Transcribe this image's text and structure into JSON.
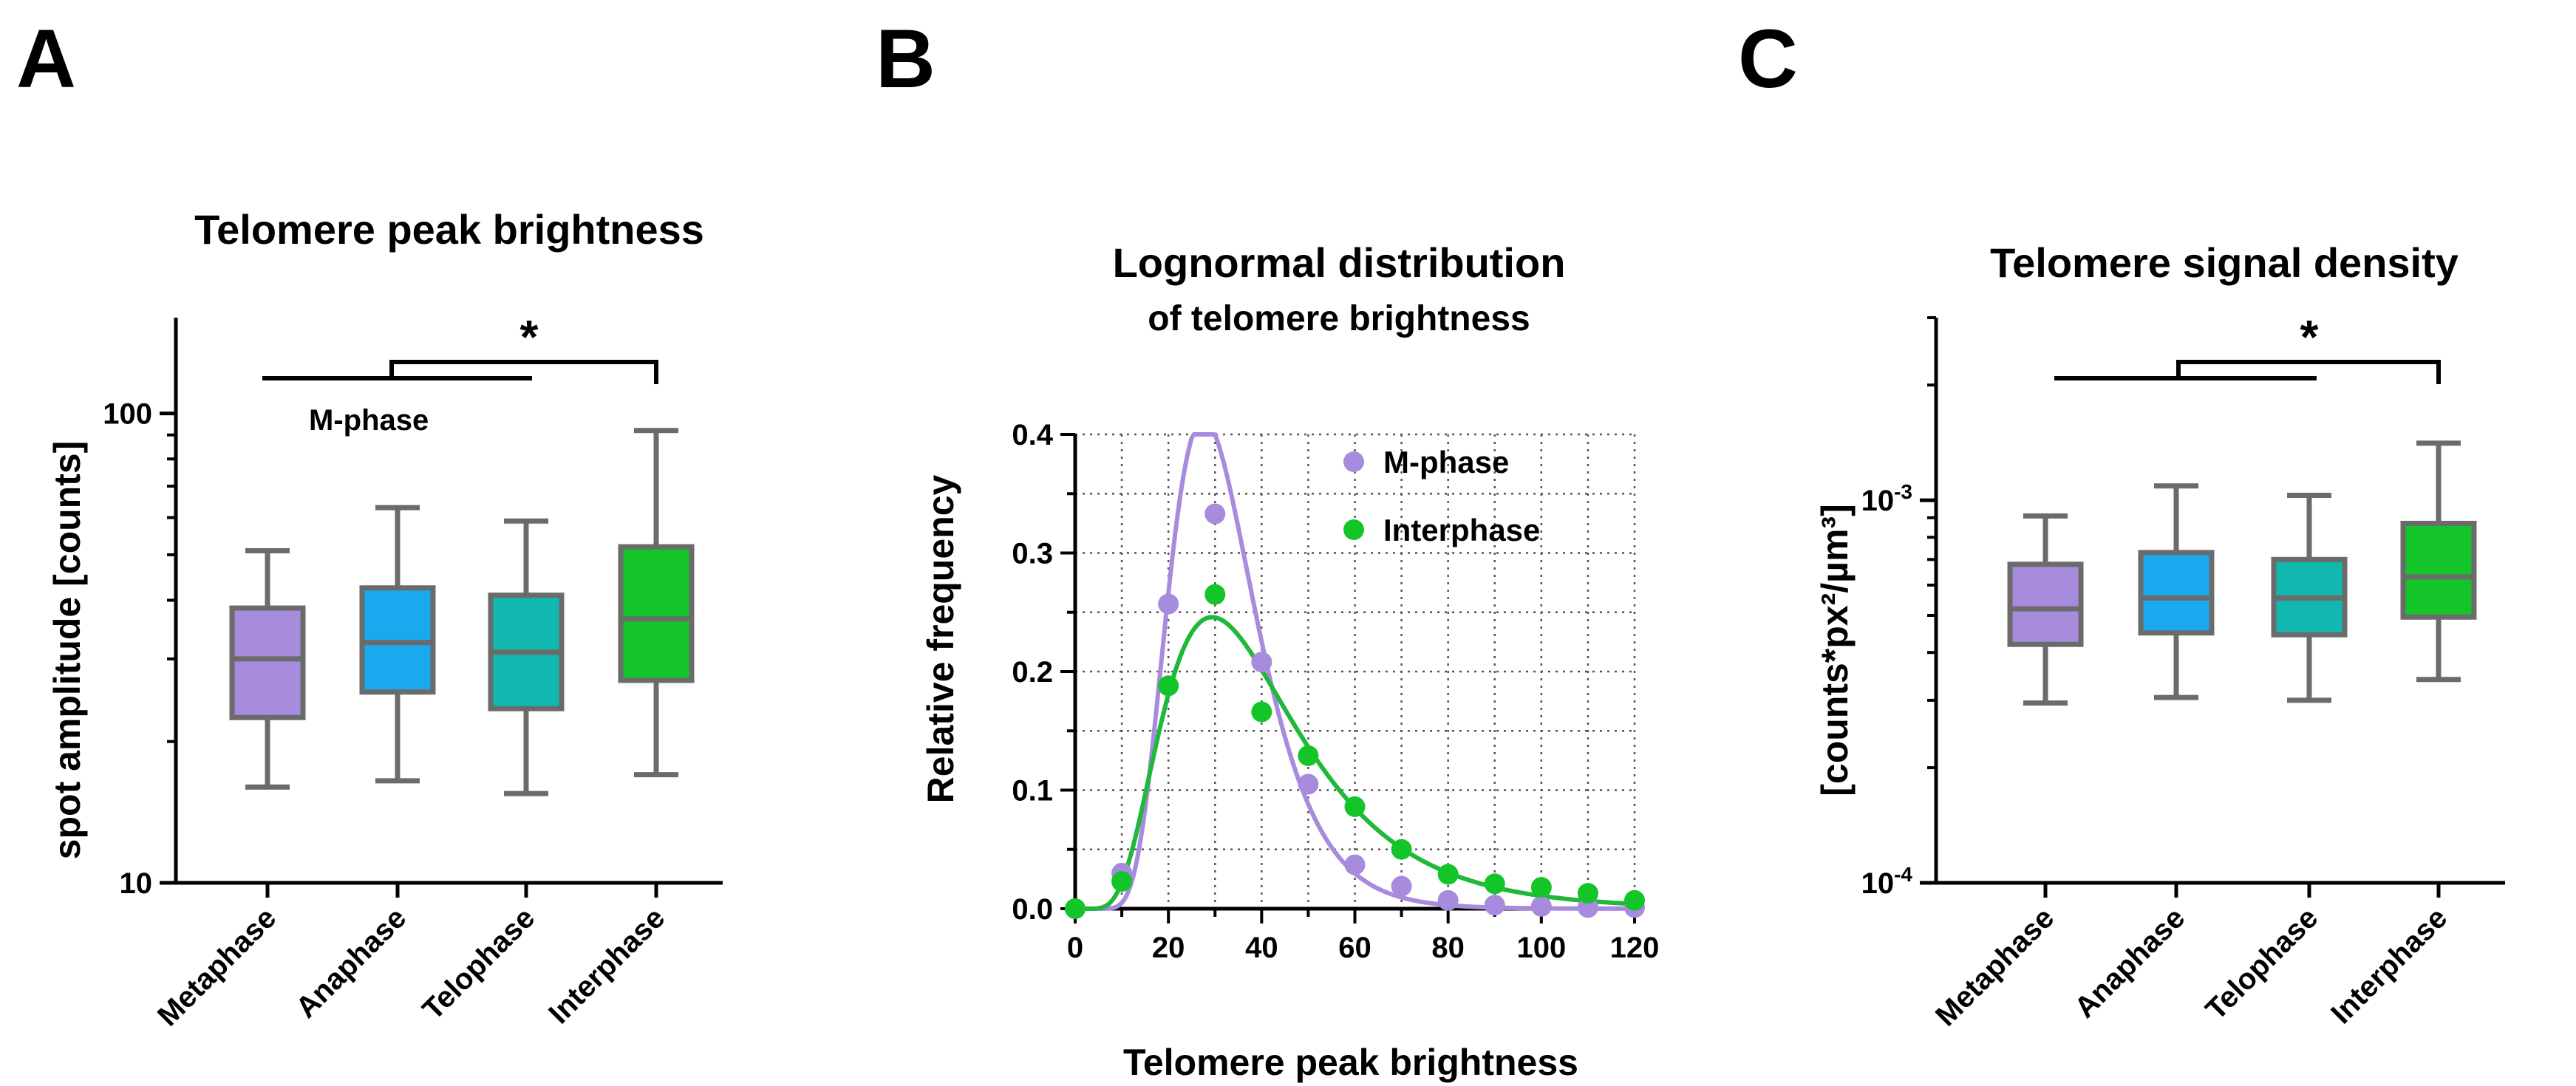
{
  "panels": {
    "a": "A",
    "b": "B",
    "c": "C"
  },
  "colors": {
    "metaphase": "#a78bdc",
    "anaphase": "#1aa9ee",
    "telophase": "#10b8b0",
    "interphase": "#14c52a",
    "box_edge": "#6b6b6b",
    "mphase_curve": "#a78bdc",
    "interphase_curve": "#20b83a"
  },
  "chart_data": [
    {
      "type": "box",
      "title": "Telomere peak brightness",
      "xlabel": "",
      "ylabel": "spot amplitude [counts]",
      "yscale": "log",
      "ylim": [
        10,
        160
      ],
      "yticks": [
        {
          "value": 10,
          "label": "10"
        },
        {
          "value": 100,
          "label": "100"
        }
      ],
      "categories": [
        "Metaphase",
        "Anaphase",
        "Telophase",
        "Interphase"
      ],
      "boxes": [
        {
          "category": "Metaphase",
          "min": 16,
          "q1": 22.5,
          "median": 30,
          "q3": 38.5,
          "max": 51
        },
        {
          "category": "Anaphase",
          "min": 16.5,
          "q1": 25.5,
          "median": 32.5,
          "q3": 42.5,
          "max": 63
        },
        {
          "category": "Telophase",
          "min": 15.5,
          "q1": 23.5,
          "median": 31,
          "q3": 41,
          "max": 59
        },
        {
          "category": "Interphase",
          "min": 17,
          "q1": 27,
          "median": 36.5,
          "q3": 52,
          "max": 92
        }
      ],
      "annotations": {
        "group_label": "M-phase",
        "significance": "*"
      }
    },
    {
      "type": "line",
      "title": "Lognormal distribution",
      "subtitle": "of telomere brightness",
      "xlabel": "Telomere peak brightness",
      "ylabel": "Relative frequency",
      "xlim": [
        0,
        120
      ],
      "ylim": [
        0,
        0.4
      ],
      "xticks": [
        0,
        20,
        40,
        60,
        80,
        100,
        120
      ],
      "yticks": [
        {
          "value": 0,
          "label": "0.0"
        },
        {
          "value": 0.1,
          "label": "0.1"
        },
        {
          "value": 0.2,
          "label": "0.2"
        },
        {
          "value": 0.3,
          "label": "0.3"
        },
        {
          "value": 0.4,
          "label": "0.4"
        }
      ],
      "grid": true,
      "legend_position": "top-right",
      "x": [
        0,
        10,
        20,
        30,
        40,
        50,
        60,
        70,
        80,
        90,
        100,
        110,
        120
      ],
      "series": [
        {
          "name": "M-phase",
          "points": [
            0,
            0.03,
            0.257,
            0.333,
            0.208,
            0.105,
            0.037,
            0.019,
            0.007,
            0.003,
            0.002,
            0.001,
            0.001
          ],
          "fit": {
            "mu": 3.43,
            "sigma": 0.34,
            "scale": 10.26
          }
        },
        {
          "name": "Interphase",
          "points": [
            0,
            0.023,
            0.188,
            0.265,
            0.166,
            0.129,
            0.086,
            0.05,
            0.029,
            0.021,
            0.018,
            0.013,
            0.007
          ],
          "fit": {
            "mu": 3.62,
            "sigma": 0.49,
            "scale": 10.0
          }
        }
      ]
    },
    {
      "type": "box",
      "title": "Telomere signal density",
      "xlabel": "",
      "ylabel": "[counts*px²/µm³]",
      "yscale": "log",
      "ylim": [
        0.0001,
        0.003
      ],
      "yticks": [
        {
          "value": 0.0001,
          "base": "10",
          "exp": "-4"
        },
        {
          "value": 0.001,
          "base": "10",
          "exp": "-3"
        }
      ],
      "categories": [
        "Metaphase",
        "Anaphase",
        "Telophase",
        "Interphase"
      ],
      "boxes": [
        {
          "category": "Metaphase",
          "min": 0.000295,
          "q1": 0.00042,
          "median": 0.00052,
          "q3": 0.00068,
          "max": 0.00091
        },
        {
          "category": "Anaphase",
          "min": 0.000305,
          "q1": 0.00045,
          "median": 0.000555,
          "q3": 0.00073,
          "max": 0.00109
        },
        {
          "category": "Telophase",
          "min": 0.0003,
          "q1": 0.000445,
          "median": 0.000555,
          "q3": 0.0007,
          "max": 0.00103
        },
        {
          "category": "Interphase",
          "min": 0.00034,
          "q1": 0.000495,
          "median": 0.00063,
          "q3": 0.00087,
          "max": 0.00141
        }
      ],
      "annotations": {
        "significance": "*"
      }
    }
  ]
}
